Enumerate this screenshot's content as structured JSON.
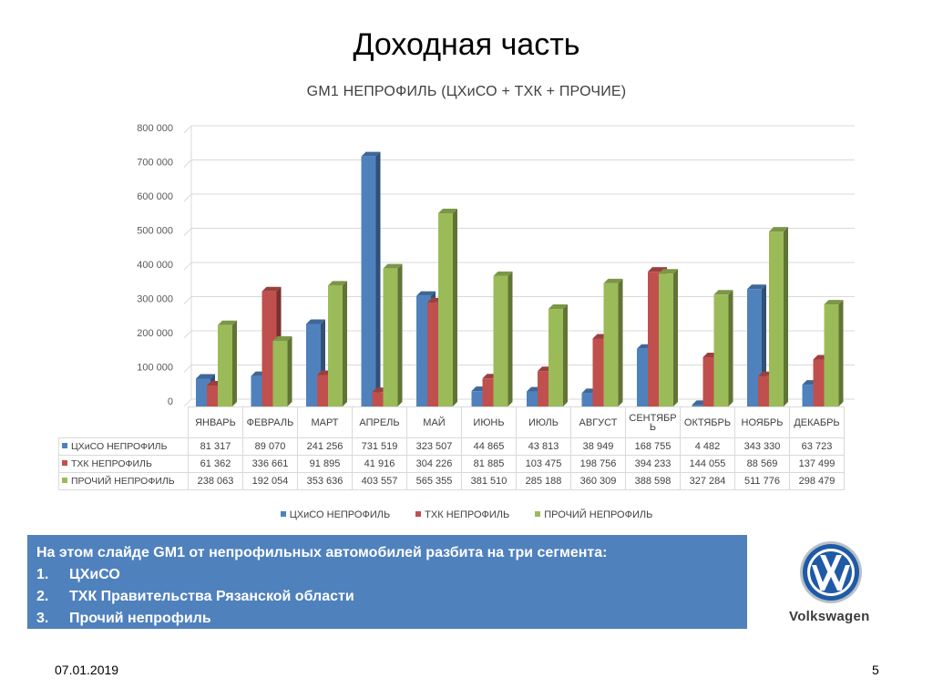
{
  "slide": {
    "title": "Доходная часть",
    "date": "07.01.2019",
    "page_number": "5"
  },
  "info_box": {
    "heading": "На этом слайде GM1 от непрофильных автомобилей разбита на три сегмента:",
    "items": [
      {
        "num": "1.",
        "text": "ЦХиСО"
      },
      {
        "num": "2.",
        "text": "ТХК Правительства Рязанской области"
      },
      {
        "num": "3.",
        "text": "Прочий непрофиль"
      }
    ],
    "background": "#4f81bd"
  },
  "logo": {
    "icon": "volkswagen-logo-icon",
    "name": "Volkswagen"
  },
  "chart_data": {
    "type": "bar",
    "title": "GM1 НЕПРОФИЛЬ (ЦХиСО + ТХК + ПРОЧИЕ)",
    "categories": [
      "ЯНВАРЬ",
      "ФЕВРАЛЬ",
      "МАРТ",
      "АПРЕЛЬ",
      "МАЙ",
      "ИЮНЬ",
      "ИЮЛЬ",
      "АВГУСТ",
      "СЕНТЯБРЬ",
      "ОКТЯБРЬ",
      "НОЯБРЬ",
      "ДЕКАБРЬ"
    ],
    "series": [
      {
        "name": "ЦХиСО НЕПРОФИЛЬ",
        "color": "#4f81bd",
        "values": [
          81317,
          89070,
          241256,
          731519,
          323507,
          44865,
          43813,
          38949,
          168755,
          4482,
          343330,
          63723
        ],
        "labels": [
          "81 317",
          "89 070",
          "241 256",
          "731 519",
          "323 507",
          "44 865",
          "43 813",
          "38 949",
          "168 755",
          "4 482",
          "343 330",
          "63 723"
        ]
      },
      {
        "name": "ТХК НЕПРОФИЛЬ",
        "color": "#c0504d",
        "values": [
          61362,
          336661,
          91895,
          41916,
          304226,
          81885,
          103475,
          198756,
          394233,
          144055,
          88569,
          137499
        ],
        "labels": [
          "61 362",
          "336 661",
          "91 895",
          "41 916",
          "304 226",
          "81 885",
          "103 475",
          "198 756",
          "394 233",
          "144 055",
          "88 569",
          "137 499"
        ]
      },
      {
        "name": "ПРОЧИЙ НЕПРОФИЛЬ",
        "color": "#9bbb59",
        "values": [
          238063,
          192054,
          353636,
          403557,
          565355,
          381510,
          285188,
          360309,
          388598,
          327284,
          511776,
          298479
        ],
        "labels": [
          "238 063",
          "192 054",
          "353 636",
          "403 557",
          "565 355",
          "381 510",
          "285 188",
          "360 309",
          "388 598",
          "327 284",
          "511 776",
          "298 479"
        ]
      }
    ],
    "yticks": [
      "0",
      "100 000",
      "200 000",
      "300 000",
      "400 000",
      "500 000",
      "600 000",
      "700 000",
      "800 000"
    ],
    "ylim": [
      0,
      800000
    ],
    "grid": true,
    "legend_position": "bottom",
    "data_table": true
  }
}
